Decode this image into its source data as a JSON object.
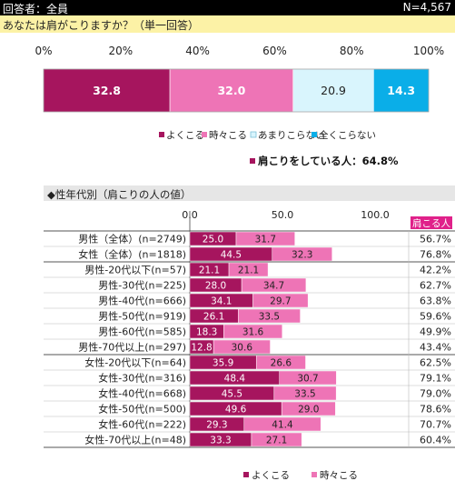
{
  "header": {
    "respondents": "回答者：全員",
    "n_total": "N=4,567"
  },
  "question": "あなたは肩がこりますか？（単一回答）",
  "colors": {
    "often": "#a6155e",
    "sometimes": "#ee74b6",
    "rarely": "#d9f5fd",
    "never": "#0aaee8",
    "header_bg": "#000000",
    "question_bg": "#fcf2a6",
    "subhead_bg": "#e6e6e6",
    "col_header_bg": "#e0218a"
  },
  "chart_data": [
    {
      "type": "bar",
      "orientation": "horizontal",
      "stacked": true,
      "normalized": true,
      "x_ticks": [
        "0%",
        "20%",
        "40%",
        "60%",
        "80%",
        "100%"
      ],
      "xlim": [
        0,
        100
      ],
      "series": [
        {
          "name": "よくこる",
          "values": [
            32.8
          ],
          "labels": [
            "32.8"
          ]
        },
        {
          "name": "時々こる",
          "values": [
            32.0
          ],
          "labels": [
            "32.0"
          ]
        },
        {
          "name": "あまりこらない",
          "values": [
            20.9
          ],
          "labels": [
            "20.9"
          ]
        },
        {
          "name": "全くこらない",
          "values": [
            14.3
          ],
          "labels": [
            "14.3"
          ]
        }
      ],
      "legend": [
        "よくこる",
        "時々こる",
        "あまりこらない",
        "全くこらない"
      ],
      "legend_position": "bottom",
      "summary": "肩こりをしている人：64.8%"
    },
    {
      "type": "bar",
      "orientation": "horizontal",
      "stacked": true,
      "title": "◆性年代別（肩こりの人の値）",
      "x_ticks": [
        "0.0",
        "50.0",
        "100.0"
      ],
      "xlim": [
        0,
        100
      ],
      "categories": [
        "男性（全体）(n=2749)",
        "女性（全体）(n=1818)",
        "男性-20代以下(n=57)",
        "男性-30代(n=225)",
        "男性-40代(n=666)",
        "男性-50代(n=919)",
        "男性-60代(n=585)",
        "男性-70代以上(n=297)",
        "女性-20代以下(n=64)",
        "女性-30代(n=316)",
        "女性-40代(n=668)",
        "女性-50代(n=500)",
        "女性-60代(n=222)",
        "女性-70代以上(n=48)"
      ],
      "series": [
        {
          "name": "よくこる",
          "values": [
            25.0,
            44.5,
            21.1,
            28.0,
            34.1,
            26.1,
            18.3,
            12.8,
            35.9,
            48.4,
            45.5,
            49.6,
            29.3,
            33.3
          ],
          "labels": [
            "25.0",
            "44.5",
            "21.1",
            "28.0",
            "34.1",
            "26.1",
            "18.3",
            "12.8",
            "35.9",
            "48.4",
            "45.5",
            "49.6",
            "29.3",
            "33.3"
          ]
        },
        {
          "name": "時々こる",
          "values": [
            31.7,
            32.3,
            21.1,
            34.7,
            29.7,
            33.5,
            31.6,
            30.6,
            26.6,
            30.7,
            33.5,
            29.0,
            41.4,
            27.1
          ],
          "labels": [
            "31.7",
            "32.3",
            "21.1",
            "34.7",
            "29.7",
            "33.5",
            "31.6",
            "30.6",
            "26.6",
            "30.7",
            "33.5",
            "29.0",
            "41.4",
            "27.1"
          ]
        }
      ],
      "total_header": "肩こる人",
      "totals": [
        "56.7%",
        "76.8%",
        "42.2%",
        "62.7%",
        "63.8%",
        "59.6%",
        "49.9%",
        "43.4%",
        "62.5%",
        "79.1%",
        "79.0%",
        "78.6%",
        "70.7%",
        "60.4%"
      ],
      "legend": [
        "よくこる",
        "時々こる"
      ],
      "legend_position": "bottom"
    }
  ]
}
